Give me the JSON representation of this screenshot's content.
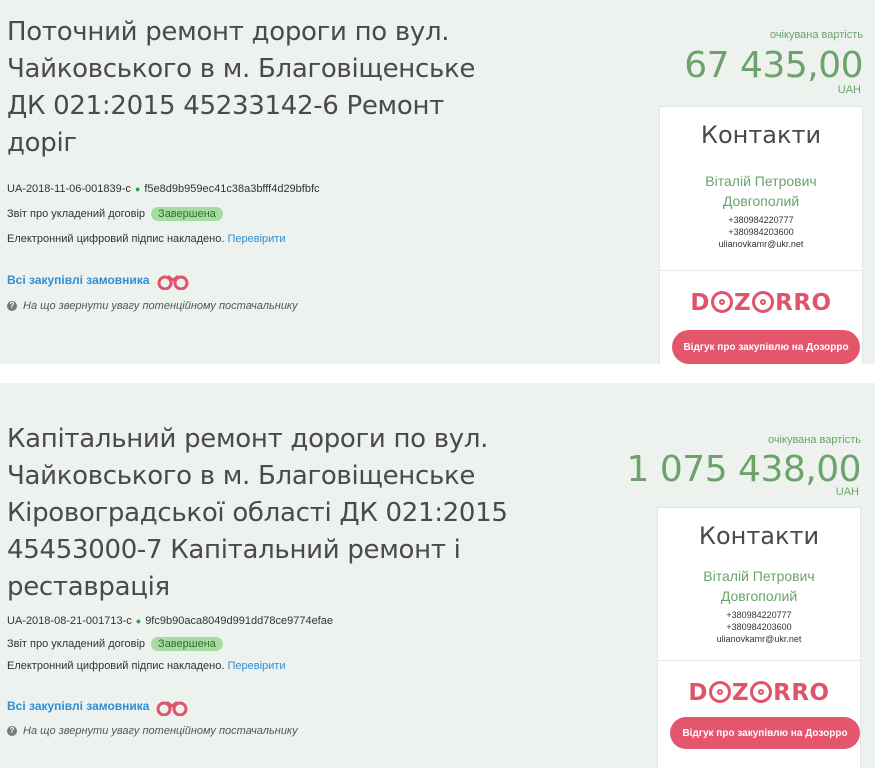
{
  "tenders": [
    {
      "title": "Поточний ремонт дороги по вул. Чайковського в м. Благовіщенське ДК 021:2015 45233142-6 Ремонт доріг",
      "id": "UA-2018-11-06-001839-c",
      "hash": "f5e8d9b959ec41c38a3bfff4d29bfbfc",
      "report_label": "Звіт про укладений договір",
      "status_badge": "Завершена",
      "signature_text": "Електронний цифровий підпис накладено.",
      "verify_link": "Перевірити",
      "buyer_link": "Всі закупівлі замовника",
      "hint": "На що звернути увагу потенційному постачальнику",
      "value_label": "очікувана вартість",
      "value_amount": "67 435,00",
      "currency": "UAH",
      "contacts": {
        "title": "Контакти",
        "name": "Віталій Петрович Довгополий",
        "phone1": "+380984220777",
        "phone2": "+380984203600",
        "email": "ulianovkamr@ukr.net"
      },
      "dozorro_button": "Відгук про закупівлю на Дозорро"
    },
    {
      "title": "Капітальний ремонт дороги по вул. Чайковського в м. Благовіщенське Кіровоградської області ДК 021:2015 45453000-7 Капітальний ремонт і реставрація",
      "id": "UA-2018-08-21-001713-c",
      "hash": "9fc9b90aca8049d991dd78ce9774efae",
      "report_label": "Звіт про укладений договір",
      "status_badge": "Завершена",
      "signature_text": "Електронний цифровий підпис накладено.",
      "verify_link": "Перевірити",
      "buyer_link": "Всі закупівлі замовника",
      "hint": "На що звернути увагу потенційному постачальнику",
      "value_label": "очікувана вартість",
      "value_amount": "1 075 438,00",
      "currency": "UAH",
      "contacts": {
        "title": "Контакти",
        "name": "Віталій Петрович Довгополий",
        "phone1": "+380984220777",
        "phone2": "+380984203600",
        "email": "ulianovkamr@ukr.net"
      },
      "dozorro_button": "Відгук про закупівлю на Дозорро"
    }
  ],
  "logo": {
    "left": "D",
    "mid": "Z",
    "right": "RRO"
  },
  "colors": {
    "accent_green": "#6ba36a",
    "link_blue": "#2d8fd5",
    "dozorro_pink": "#e4566b",
    "card_bg": "#edf2ee",
    "badge_bg": "#a6dca0"
  },
  "icons": [
    "binoculars-icon",
    "question-circle-icon",
    "status-dot-icon",
    "dozorro-logo"
  ]
}
